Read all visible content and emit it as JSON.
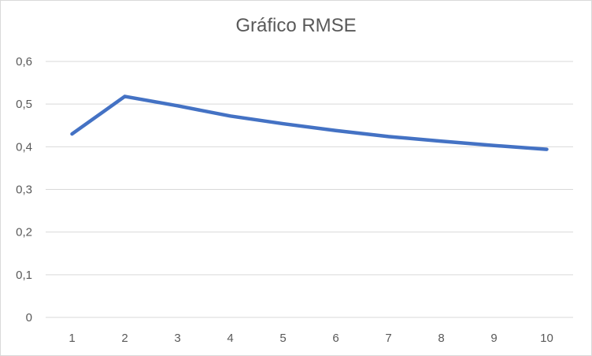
{
  "chart_data": {
    "type": "line",
    "title": "Gráfico RMSE",
    "xlabel": "",
    "ylabel": "",
    "categories": [
      "1",
      "2",
      "3",
      "4",
      "5",
      "6",
      "7",
      "8",
      "9",
      "10"
    ],
    "series": [
      {
        "values": [
          0.43,
          0.518,
          0.496,
          0.472,
          0.454,
          0.438,
          0.424,
          0.413,
          0.403,
          0.394
        ],
        "color": "#4472c4"
      }
    ],
    "ylim": [
      0,
      0.6
    ],
    "yticks": [
      "0",
      "0,1",
      "0,2",
      "0,3",
      "0,4",
      "0,5",
      "0,6"
    ],
    "grid": true,
    "legend": "none"
  }
}
